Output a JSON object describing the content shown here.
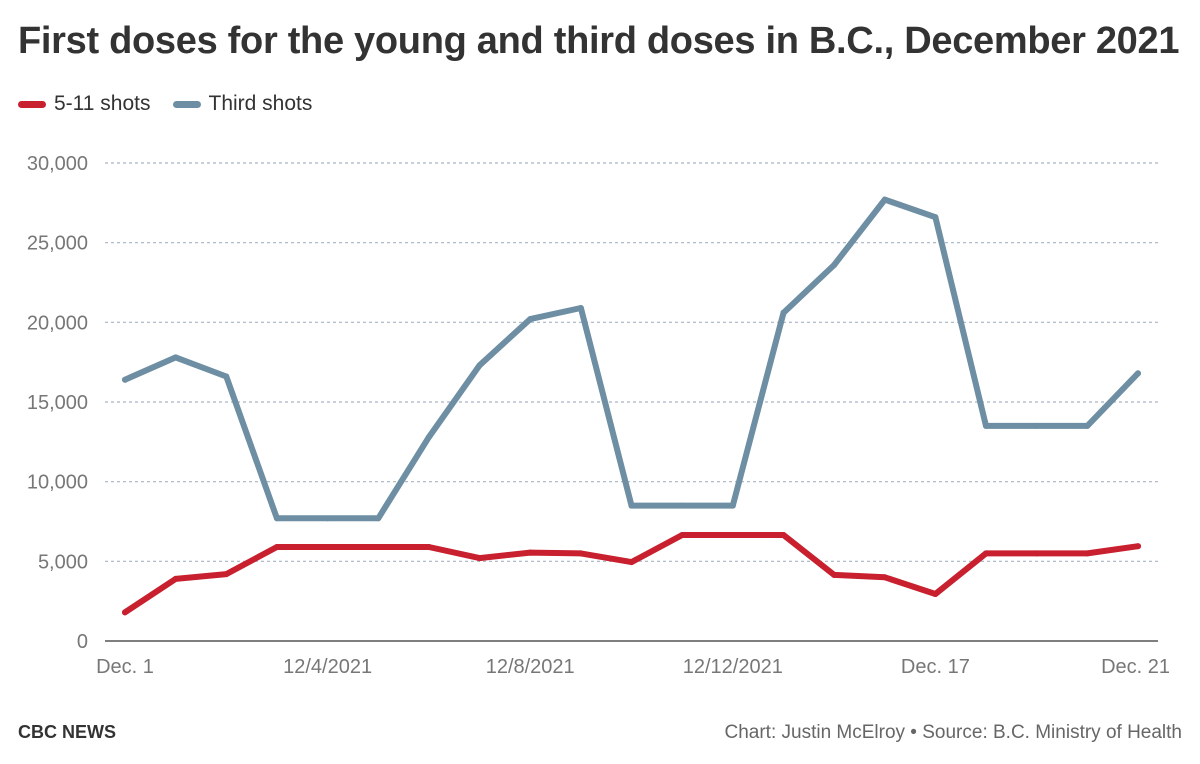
{
  "header": {
    "title": "First doses for the young and third doses in B.C., December 2021"
  },
  "footer": {
    "brand": "CBC NEWS",
    "credit": "Chart: Justin McElroy • Source: B.C. Ministry of Health"
  },
  "colors": {
    "five_to_eleven": "#c8202f",
    "third": "#6d8ea3",
    "grid": "#a8b4c4",
    "axis": "#555555"
  },
  "chart_data": {
    "type": "line",
    "title": "First doses for the young and third doses in B.C., December 2021",
    "xlabel": "",
    "ylabel": "",
    "ylim": [
      0,
      30000
    ],
    "yticks": [
      0,
      5000,
      10000,
      15000,
      20000,
      25000,
      30000
    ],
    "ytick_labels": [
      "0",
      "5,000",
      "10,000",
      "15,000",
      "20,000",
      "25,000",
      "30,000"
    ],
    "xlim": [
      1,
      21
    ],
    "x": [
      1,
      2,
      3,
      4,
      5,
      6,
      7,
      8,
      9,
      10,
      11,
      12,
      13,
      14,
      15,
      16,
      17,
      18,
      19,
      20,
      21
    ],
    "xticks": [
      {
        "x": 1,
        "label": "Dec. 1"
      },
      {
        "x": 5,
        "label": "12/4/2021"
      },
      {
        "x": 9,
        "label": "12/8/2021"
      },
      {
        "x": 13,
        "label": "12/12/2021"
      },
      {
        "x": 17,
        "label": "Dec. 17"
      },
      {
        "x": 21,
        "label": "Dec. 21"
      }
    ],
    "grid": true,
    "legend_position": "top-left",
    "series": [
      {
        "name": "5-11 shots",
        "color": "#c8202f",
        "values": [
          1800,
          3900,
          4200,
          5900,
          5900,
          5900,
          5900,
          5200,
          5550,
          5500,
          4950,
          6650,
          6650,
          6650,
          4150,
          4000,
          2950,
          5500,
          5500,
          5500,
          5950
        ]
      },
      {
        "name": "Third shots",
        "color": "#6d8ea3",
        "values": [
          16400,
          17800,
          16600,
          7700,
          7700,
          7700,
          12800,
          17300,
          20200,
          20900,
          8500,
          8500,
          8500,
          20600,
          23600,
          27700,
          26600,
          13500,
          13500,
          13500,
          16800
        ]
      }
    ]
  }
}
